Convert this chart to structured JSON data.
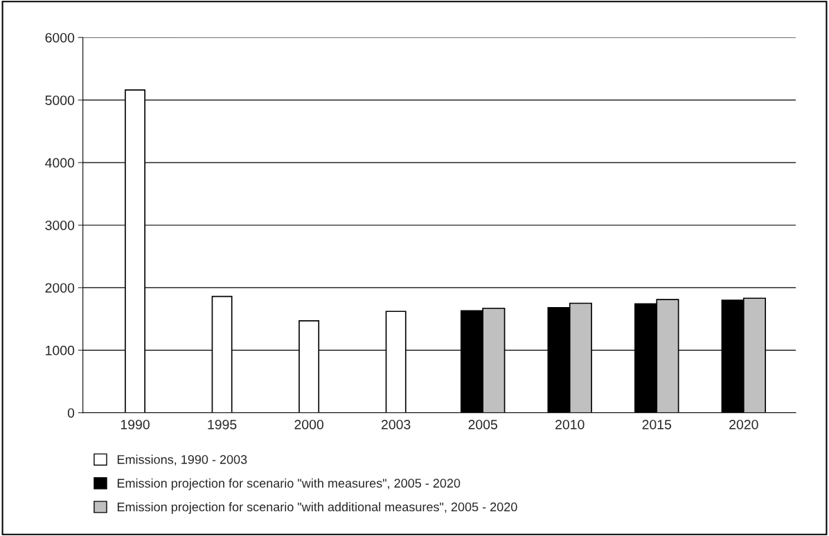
{
  "chart_data": {
    "type": "bar",
    "categories": [
      "1990",
      "1995",
      "2000",
      "2003",
      "2005",
      "2010",
      "2015",
      "2020"
    ],
    "series": [
      {
        "name": "Emissions, 1990 - 2003",
        "color": "#ffffff",
        "values": [
          5160,
          1860,
          1470,
          1620,
          null,
          null,
          null,
          null
        ]
      },
      {
        "name": "Emission projection for scenario \"with measures\", 2005 - 2020",
        "color": "#000000",
        "values": [
          null,
          null,
          null,
          null,
          1630,
          1680,
          1740,
          1800
        ]
      },
      {
        "name": "Emission projection for scenario \"with additional measures\", 2005 - 2020",
        "color": "#c0c0c0",
        "values": [
          null,
          null,
          null,
          null,
          1670,
          1750,
          1810,
          1830
        ]
      }
    ],
    "ylim": [
      0,
      6000
    ],
    "yticks": [
      0,
      1000,
      2000,
      3000,
      4000,
      5000,
      6000
    ],
    "grid": "y",
    "legend": "bottom"
  }
}
